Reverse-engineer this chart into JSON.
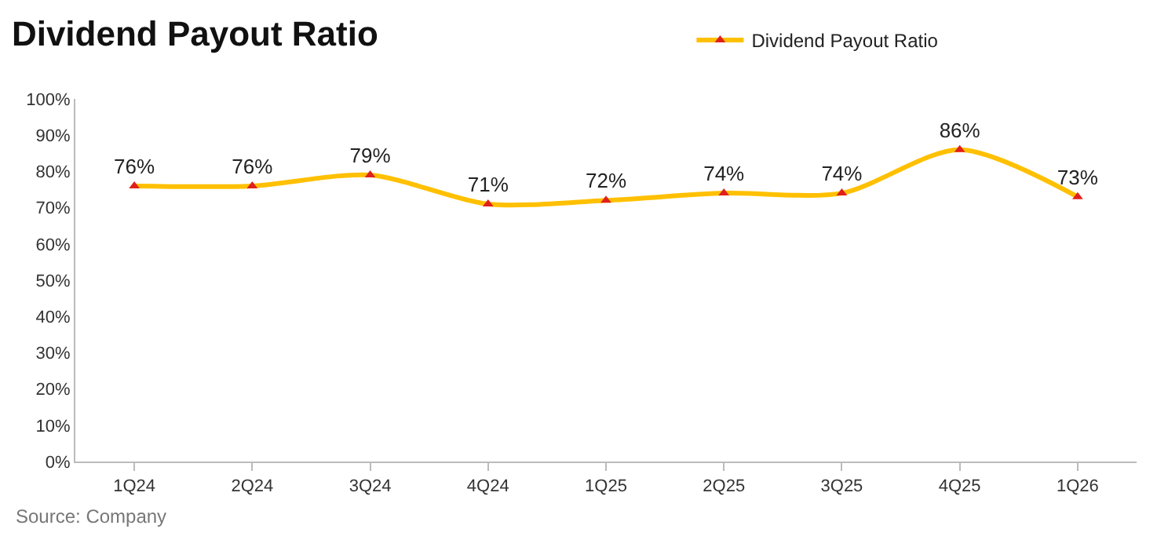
{
  "chart_data": {
    "type": "line",
    "title": "Dividend Payout Ratio",
    "categories": [
      "1Q24",
      "2Q24",
      "3Q24",
      "4Q24",
      "1Q25",
      "2Q25",
      "3Q25",
      "4Q25",
      "1Q26"
    ],
    "series": [
      {
        "name": "Dividend Payout Ratio",
        "color": "#ffc000",
        "values": [
          76,
          76,
          79,
          71,
          72,
          74,
          74,
          86,
          73
        ],
        "value_labels": [
          "76%",
          "76%",
          "79%",
          "71%",
          "72%",
          "74%",
          "74%",
          "86%",
          "73%"
        ]
      }
    ],
    "ylim": [
      0,
      100
    ],
    "yticks": [
      {
        "value": 0,
        "label": "0%"
      },
      {
        "value": 10,
        "label": "10%"
      },
      {
        "value": 20,
        "label": "20%"
      },
      {
        "value": 30,
        "label": "30%"
      },
      {
        "value": 40,
        "label": "40%"
      },
      {
        "value": 50,
        "label": "50%"
      },
      {
        "value": 60,
        "label": "60%"
      },
      {
        "value": 70,
        "label": "70%"
      },
      {
        "value": 80,
        "label": "80%"
      },
      {
        "value": 90,
        "label": "90%"
      },
      {
        "value": 100,
        "label": "100%"
      }
    ],
    "legend": "top",
    "marker": "triangle",
    "line_style": "solid",
    "annotations": [
      "Source: Company"
    ]
  }
}
